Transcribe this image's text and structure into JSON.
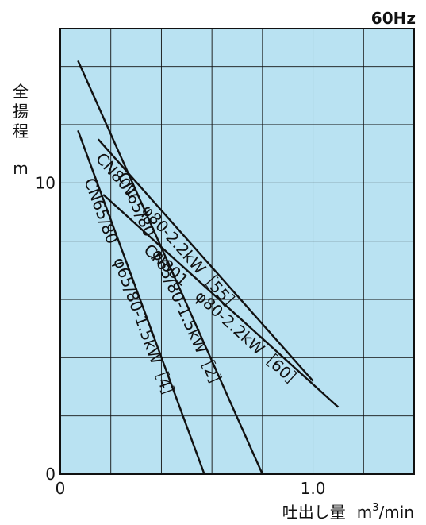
{
  "chart_data": {
    "type": "line",
    "frequency_label": "60Hz",
    "ylabel_chars": [
      "全",
      "揚",
      "程"
    ],
    "ylabel_unit": "m",
    "xlabel_text": "吐出し量",
    "xlabel_unit_pre": "m",
    "xlabel_unit_sup": "3",
    "xlabel_unit_post": "/min",
    "xlim": [
      0,
      1.4
    ],
    "ylim": [
      0,
      15.3
    ],
    "grid": true,
    "background": "#b9e2f2",
    "line_color": "#111111",
    "x_ticks": [
      {
        "value": 0,
        "label": "0"
      },
      {
        "value": 1.0,
        "label": "1.0"
      }
    ],
    "y_ticks": [
      {
        "value": 0,
        "label": "0"
      },
      {
        "value": 10,
        "label": "10"
      }
    ],
    "series": [
      {
        "name": "CN801 φ80-2.2kW[55]",
        "x": [
          0.15,
          1.0
        ],
        "y": [
          11.5,
          3.2
        ]
      },
      {
        "name": "CN801 φ80-2.2kW[60]",
        "x": [
          0.17,
          1.1
        ],
        "y": [
          9.6,
          2.3
        ]
      },
      {
        "name": "CN65/80 φ65/80-1.5kW[2]",
        "x": [
          0.07,
          0.8
        ],
        "y": [
          14.2,
          0
        ]
      },
      {
        "name": "CN65/80 φ65/80-1.5kW[4]",
        "x": [
          0.07,
          0.57
        ],
        "y": [
          11.8,
          0
        ]
      }
    ],
    "annotations": [
      {
        "text": "CN801　φ80-2.2kW［55］",
        "series": 0
      },
      {
        "text": "CN801　φ80-2.2kW［60］",
        "series": 1
      },
      {
        "text": "CN65/80　φ65/80-1.5kW［2］",
        "series": 2
      },
      {
        "text": "CN65/80　φ65/80-1.5kW［4］",
        "series": 3
      }
    ]
  }
}
